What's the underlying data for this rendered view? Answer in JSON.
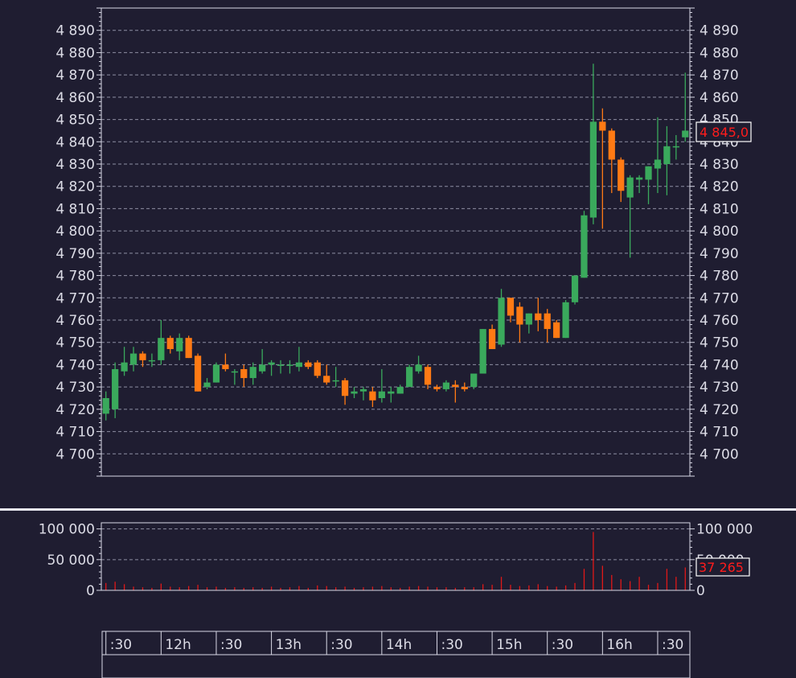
{
  "colors": {
    "background": "#1f1d31",
    "frame": "#d9d9e6",
    "grid": "#8e8ea3",
    "text": "#dcdce6",
    "up_candle": "#3aa95c",
    "down_candle": "#ff7a14",
    "volume": "#e01818",
    "last_value_label": "#ff1c1c"
  },
  "price_panel": {
    "last_value_label": "4 845,0",
    "ticks": [
      {
        "value": 4890,
        "label": "4 890"
      },
      {
        "value": 4880,
        "label": "4 880"
      },
      {
        "value": 4870,
        "label": "4 870"
      },
      {
        "value": 4860,
        "label": "4 860"
      },
      {
        "value": 4850,
        "label": "4 850"
      },
      {
        "value": 4840,
        "label": "4 840"
      },
      {
        "value": 4830,
        "label": "4 830"
      },
      {
        "value": 4820,
        "label": "4 820"
      },
      {
        "value": 4810,
        "label": "4 810"
      },
      {
        "value": 4800,
        "label": "4 800"
      },
      {
        "value": 4790,
        "label": "4 790"
      },
      {
        "value": 4780,
        "label": "4 780"
      },
      {
        "value": 4770,
        "label": "4 770"
      },
      {
        "value": 4760,
        "label": "4 760"
      },
      {
        "value": 4750,
        "label": "4 750"
      },
      {
        "value": 4740,
        "label": "4 740"
      },
      {
        "value": 4730,
        "label": "4 730"
      },
      {
        "value": 4720,
        "label": "4 720"
      },
      {
        "value": 4710,
        "label": "4 710"
      },
      {
        "value": 4700,
        "label": "4 700"
      }
    ]
  },
  "volume_panel": {
    "last_value_label": "37 265",
    "ticks": [
      {
        "value": 100000,
        "label": "100 000"
      },
      {
        "value": 50000,
        "label": "50 000"
      },
      {
        "value": 0,
        "label": "0"
      }
    ]
  },
  "time_axis": {
    "labels": [
      {
        "pos": 0.5,
        "label": ":30"
      },
      {
        "pos": 6.5,
        "label": "12h"
      },
      {
        "pos": 12.5,
        "label": ":30"
      },
      {
        "pos": 18.5,
        "label": "13h"
      },
      {
        "pos": 24.5,
        "label": ":30"
      },
      {
        "pos": 30.5,
        "label": "14h"
      },
      {
        "pos": 36.5,
        "label": ":30"
      },
      {
        "pos": 42.5,
        "label": "15h"
      },
      {
        "pos": 48.5,
        "label": ":30"
      },
      {
        "pos": 54.5,
        "label": "16h"
      },
      {
        "pos": 60.5,
        "label": ":30"
      }
    ]
  },
  "chart_data": {
    "type": "candlestick",
    "x_unit": "5-minute bars",
    "price_ylim": [
      4690,
      4900
    ],
    "volume_ylim": [
      0,
      110000
    ],
    "grid": true,
    "candles": [
      {
        "o": 4718,
        "h": 4728,
        "l": 4715,
        "c": 4725,
        "v": 12000
      },
      {
        "o": 4720,
        "h": 4741,
        "l": 4716,
        "c": 4738,
        "v": 14000
      },
      {
        "o": 4737,
        "h": 4748,
        "l": 4735,
        "c": 4741,
        "v": 10000
      },
      {
        "o": 4740,
        "h": 4748,
        "l": 4737,
        "c": 4745,
        "v": 6000
      },
      {
        "o": 4745,
        "h": 4746,
        "l": 4739,
        "c": 4742,
        "v": 5000
      },
      {
        "o": 4742,
        "h": 4745,
        "l": 4739,
        "c": 4742,
        "v": 4000
      },
      {
        "o": 4742,
        "h": 4760,
        "l": 4740,
        "c": 4752,
        "v": 11000
      },
      {
        "o": 4752,
        "h": 4753,
        "l": 4745,
        "c": 4747,
        "v": 6000
      },
      {
        "o": 4746,
        "h": 4754,
        "l": 4742,
        "c": 4752,
        "v": 5000
      },
      {
        "o": 4752,
        "h": 4753,
        "l": 4743,
        "c": 4743,
        "v": 7000
      },
      {
        "o": 4744,
        "h": 4745,
        "l": 4728,
        "c": 4728,
        "v": 9000
      },
      {
        "o": 4730,
        "h": 4734,
        "l": 4729,
        "c": 4732,
        "v": 5000
      },
      {
        "o": 4732,
        "h": 4741,
        "l": 4732,
        "c": 4740,
        "v": 6000
      },
      {
        "o": 4740,
        "h": 4745,
        "l": 4737,
        "c": 4738,
        "v": 4000
      },
      {
        "o": 4737,
        "h": 4738,
        "l": 4731,
        "c": 4737,
        "v": 5000
      },
      {
        "o": 4738,
        "h": 4740,
        "l": 4730,
        "c": 4734,
        "v": 4000
      },
      {
        "o": 4734,
        "h": 4741,
        "l": 4731,
        "c": 4739,
        "v": 5000
      },
      {
        "o": 4737,
        "h": 4747,
        "l": 4736,
        "c": 4740,
        "v": 4000
      },
      {
        "o": 4740,
        "h": 4742,
        "l": 4735,
        "c": 4741,
        "v": 6000
      },
      {
        "o": 4740,
        "h": 4742,
        "l": 4736,
        "c": 4740,
        "v": 4000
      },
      {
        "o": 4740,
        "h": 4742,
        "l": 4736,
        "c": 4740,
        "v": 5000
      },
      {
        "o": 4739,
        "h": 4748,
        "l": 4737,
        "c": 4741,
        "v": 7000
      },
      {
        "o": 4741,
        "h": 4742,
        "l": 4738,
        "c": 4739,
        "v": 4000
      },
      {
        "o": 4741,
        "h": 4742,
        "l": 4734,
        "c": 4735,
        "v": 8000
      },
      {
        "o": 4735,
        "h": 4740,
        "l": 4731,
        "c": 4732,
        "v": 7000
      },
      {
        "o": 4733,
        "h": 4739,
        "l": 4730,
        "c": 4733,
        "v": 5000
      },
      {
        "o": 4733,
        "h": 4734,
        "l": 4722,
        "c": 4726,
        "v": 6000
      },
      {
        "o": 4727,
        "h": 4730,
        "l": 4725,
        "c": 4728,
        "v": 4000
      },
      {
        "o": 4728,
        "h": 4730,
        "l": 4724,
        "c": 4729,
        "v": 5000
      },
      {
        "o": 4728,
        "h": 4730,
        "l": 4721,
        "c": 4724,
        "v": 6000
      },
      {
        "o": 4725,
        "h": 4738,
        "l": 4723,
        "c": 4728,
        "v": 7000
      },
      {
        "o": 4727,
        "h": 4730,
        "l": 4723,
        "c": 4728,
        "v": 5000
      },
      {
        "o": 4727,
        "h": 4731,
        "l": 4727,
        "c": 4730,
        "v": 4000
      },
      {
        "o": 4730,
        "h": 4740,
        "l": 4730,
        "c": 4739,
        "v": 6000
      },
      {
        "o": 4737,
        "h": 4744,
        "l": 4736,
        "c": 4740,
        "v": 7000
      },
      {
        "o": 4739,
        "h": 4740,
        "l": 4729,
        "c": 4731,
        "v": 6000
      },
      {
        "o": 4730,
        "h": 4731,
        "l": 4728,
        "c": 4729,
        "v": 5000
      },
      {
        "o": 4729,
        "h": 4733,
        "l": 4728,
        "c": 4732,
        "v": 5000
      },
      {
        "o": 4731,
        "h": 4733,
        "l": 4723,
        "c": 4730,
        "v": 4000
      },
      {
        "o": 4730,
        "h": 4732,
        "l": 4728,
        "c": 4729,
        "v": 5000
      },
      {
        "o": 4730,
        "h": 4736,
        "l": 4729,
        "c": 4736,
        "v": 5000
      },
      {
        "o": 4736,
        "h": 4756,
        "l": 4736,
        "c": 4756,
        "v": 10000
      },
      {
        "o": 4756,
        "h": 4758,
        "l": 4747,
        "c": 4747,
        "v": 9000
      },
      {
        "o": 4749,
        "h": 4774,
        "l": 4748,
        "c": 4770,
        "v": 22000
      },
      {
        "o": 4770,
        "h": 4770,
        "l": 4759,
        "c": 4762,
        "v": 9000
      },
      {
        "o": 4766,
        "h": 4768,
        "l": 4750,
        "c": 4758,
        "v": 7000
      },
      {
        "o": 4758,
        "h": 4763,
        "l": 4754,
        "c": 4763,
        "v": 8000
      },
      {
        "o": 4763,
        "h": 4770,
        "l": 4755,
        "c": 4760,
        "v": 10000
      },
      {
        "o": 4763,
        "h": 4765,
        "l": 4750,
        "c": 4756,
        "v": 7000
      },
      {
        "o": 4759,
        "h": 4760,
        "l": 4752,
        "c": 4752,
        "v": 6000
      },
      {
        "o": 4752,
        "h": 4769,
        "l": 4752,
        "c": 4768,
        "v": 8000
      },
      {
        "o": 4768,
        "h": 4780,
        "l": 4767,
        "c": 4780,
        "v": 12000
      },
      {
        "o": 4779,
        "h": 4809,
        "l": 4779,
        "c": 4807,
        "v": 35000
      },
      {
        "o": 4806,
        "h": 4875,
        "l": 4803,
        "c": 4849,
        "v": 95000
      },
      {
        "o": 4849,
        "h": 4855,
        "l": 4801,
        "c": 4845,
        "v": 40000
      },
      {
        "o": 4845,
        "h": 4846,
        "l": 4817,
        "c": 4832,
        "v": 25000
      },
      {
        "o": 4832,
        "h": 4833,
        "l": 4813,
        "c": 4818,
        "v": 18000
      },
      {
        "o": 4815,
        "h": 4825,
        "l": 4788,
        "c": 4824,
        "v": 15000
      },
      {
        "o": 4823,
        "h": 4825,
        "l": 4817,
        "c": 4824,
        "v": 22000
      },
      {
        "o": 4823,
        "h": 4829,
        "l": 4812,
        "c": 4829,
        "v": 9000
      },
      {
        "o": 4828,
        "h": 4851,
        "l": 4817,
        "c": 4832,
        "v": 12000
      },
      {
        "o": 4830,
        "h": 4847,
        "l": 4816,
        "c": 4838,
        "v": 35000
      },
      {
        "o": 4838,
        "h": 4843,
        "l": 4832,
        "c": 4838,
        "v": 22000
      },
      {
        "o": 4842,
        "h": 4871,
        "l": 4840,
        "c": 4845,
        "v": 37265
      }
    ]
  }
}
